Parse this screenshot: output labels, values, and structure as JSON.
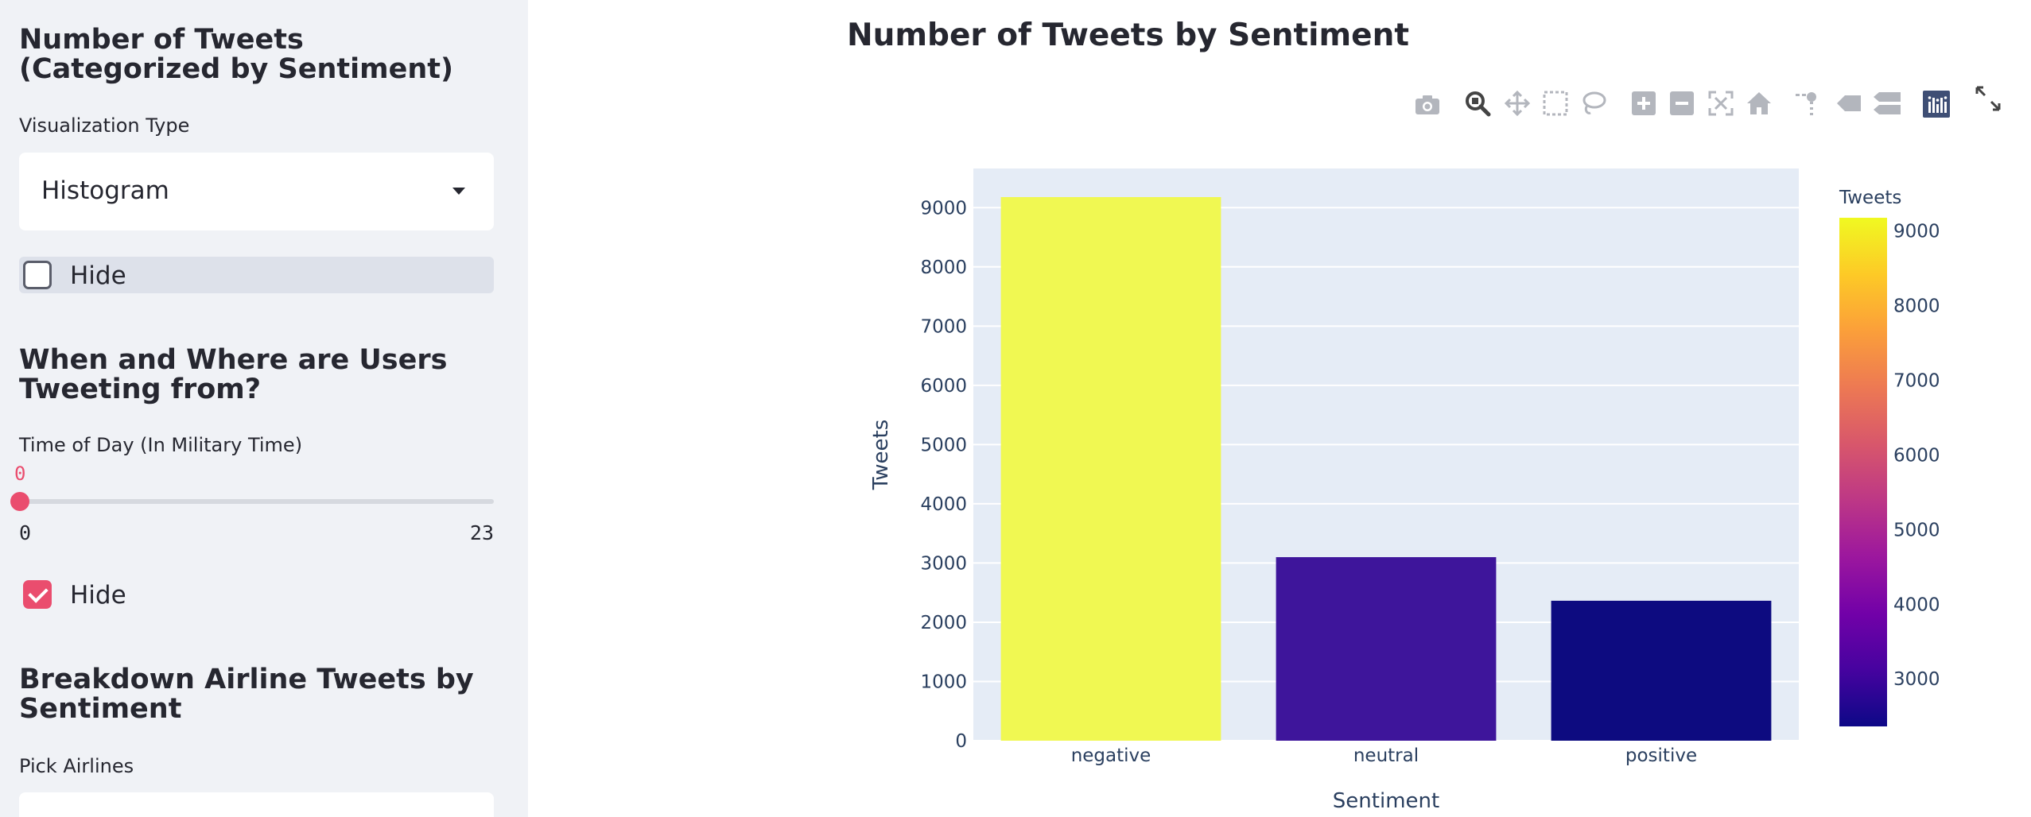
{
  "sidebar": {
    "section1_title": "Number of Tweets (Categorized by Sentiment)",
    "viz_type_label": "Visualization Type",
    "viz_type_value": "Histogram",
    "hide1_label": "Hide",
    "hide1_checked": false,
    "section2_title": "When and Where are Users Tweeting from?",
    "time_label": "Time of Day (In Military Time)",
    "time_value": "0",
    "time_min": "0",
    "time_max": "23",
    "hide2_label": "Hide",
    "hide2_checked": true,
    "section3_title": "Breakdown Airline Tweets by Sentiment",
    "airlines_label": "Pick Airlines"
  },
  "modebar": [
    "camera-icon",
    "zoom-icon",
    "pan-icon",
    "box-select-icon",
    "lasso-icon",
    "zoom-in-icon",
    "zoom-out-icon",
    "autoscale-icon",
    "reset-axes-icon",
    "spike-lines-icon",
    "hover-closest-icon",
    "hover-compare-icon",
    "plotly-logo-icon"
  ],
  "chart_data": {
    "type": "bar",
    "title": "Number of Tweets by Sentiment",
    "xlabel": "Sentiment",
    "ylabel": "Tweets",
    "categories": [
      "negative",
      "neutral",
      "positive"
    ],
    "values": [
      9178,
      3099,
      2363
    ],
    "ylim": [
      0,
      9661
    ],
    "yticks": [
      0,
      1000,
      2000,
      3000,
      4000,
      5000,
      6000,
      7000,
      8000,
      9000
    ],
    "grid": true,
    "colorbar": {
      "title": "Tweets",
      "range": [
        2363,
        9178
      ],
      "ticks": [
        3000,
        4000,
        5000,
        6000,
        7000,
        8000,
        9000
      ],
      "colorscale": [
        "#0d0887",
        "#46039f",
        "#7201a8",
        "#9c179e",
        "#bd3786",
        "#d8576b",
        "#ed7953",
        "#fb9f3a",
        "#fdca26",
        "#f0f921"
      ]
    },
    "bar_colors": [
      "#f0f852",
      "#3e159b",
      "#0d0b80"
    ]
  }
}
